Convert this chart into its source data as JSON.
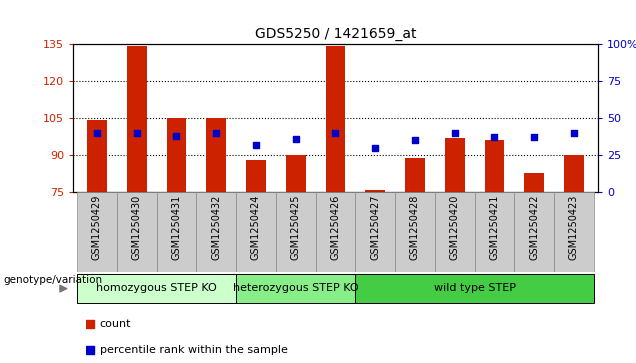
{
  "title": "GDS5250 / 1421659_at",
  "samples": [
    "GSM1250429",
    "GSM1250430",
    "GSM1250431",
    "GSM1250432",
    "GSM1250424",
    "GSM1250425",
    "GSM1250426",
    "GSM1250427",
    "GSM1250428",
    "GSM1250420",
    "GSM1250421",
    "GSM1250422",
    "GSM1250423"
  ],
  "counts": [
    104,
    134,
    105,
    105,
    88,
    90,
    134,
    76,
    89,
    97,
    96,
    83,
    90
  ],
  "percentile_ranks": [
    40,
    40,
    38,
    40,
    32,
    36,
    40,
    30,
    35,
    40,
    37,
    37,
    40
  ],
  "ylim_left": [
    75,
    135
  ],
  "ylim_right": [
    0,
    100
  ],
  "yticks_left": [
    75,
    90,
    105,
    120,
    135
  ],
  "yticks_right": [
    0,
    25,
    50,
    75,
    100
  ],
  "bar_color": "#cc2200",
  "dot_color": "#0000cc",
  "grid_color": "#000000",
  "group_spans": [
    {
      "label": "homozygous STEP KO",
      "start": 0,
      "end": 3,
      "color": "#ccffcc"
    },
    {
      "label": "heterozygous STEP KO",
      "start": 4,
      "end": 6,
      "color": "#88ee88"
    },
    {
      "label": "wild type STEP",
      "start": 7,
      "end": 12,
      "color": "#44cc44"
    }
  ],
  "legend_count_color": "#cc2200",
  "legend_dot_color": "#0000cc",
  "bar_width": 0.5,
  "genotype_label": "genotype/variation",
  "xtick_bg": "#cccccc",
  "title_fontsize": 10
}
